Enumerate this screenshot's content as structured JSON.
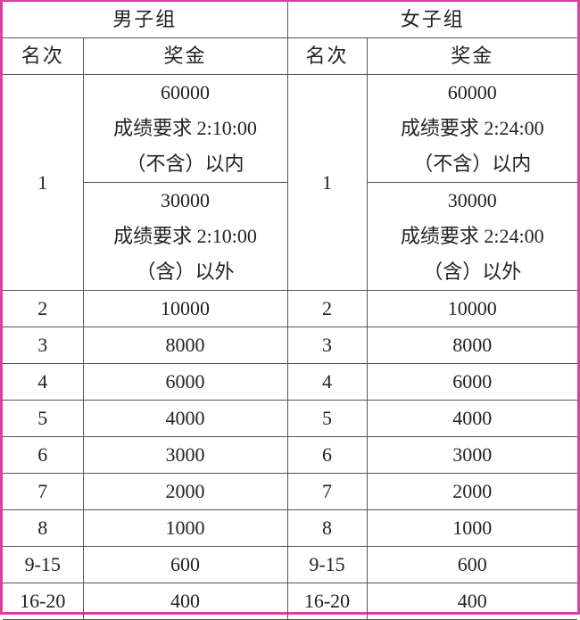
{
  "groups": {
    "men": "男子组",
    "women": "女子组"
  },
  "columns": {
    "rank": "名次",
    "prize": "奖金"
  },
  "first_place": {
    "rank": "1",
    "men": [
      {
        "amount": "60000",
        "requirement": "成绩要求 2:10:00",
        "condition": "（不含）以内"
      },
      {
        "amount": "30000",
        "requirement": "成绩要求 2:10:00",
        "condition": "（含）以外"
      }
    ],
    "women": [
      {
        "amount": "60000",
        "requirement": "成绩要求 2:24:00",
        "condition": "（不含）以内"
      },
      {
        "amount": "30000",
        "requirement": "成绩要求 2:24:00",
        "condition": "（含）以外"
      }
    ]
  },
  "rows": [
    {
      "rank": "2",
      "men": "10000",
      "women": "10000"
    },
    {
      "rank": "3",
      "men": "8000",
      "women": "8000"
    },
    {
      "rank": "4",
      "men": "6000",
      "women": "6000"
    },
    {
      "rank": "5",
      "men": "4000",
      "women": "4000"
    },
    {
      "rank": "6",
      "men": "3000",
      "women": "3000"
    },
    {
      "rank": "7",
      "men": "2000",
      "women": "2000"
    },
    {
      "rank": "8",
      "men": "1000",
      "women": "1000"
    },
    {
      "rank": "9-15",
      "men": "600",
      "women": "600"
    },
    {
      "rank": "16-20",
      "men": "400",
      "women": "400"
    }
  ],
  "colors": {
    "frame": "#d6409f",
    "grid": "#555555"
  }
}
